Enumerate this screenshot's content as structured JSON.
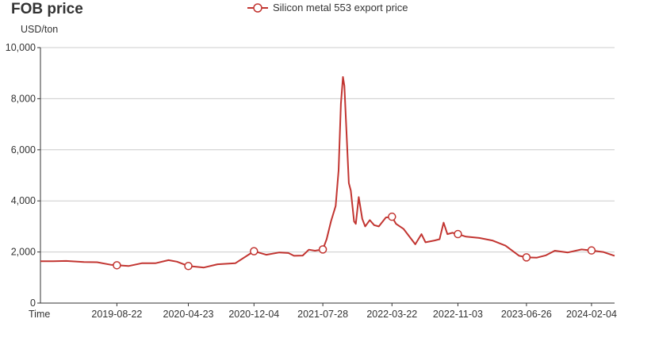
{
  "title": "FOB price",
  "unit": "USD/ton",
  "colors": {
    "series": "#c23531",
    "axis": "#333333",
    "grid": "#cccccc"
  },
  "chart_data": {
    "type": "line",
    "title": "FOB price",
    "ylabel": "USD/ton",
    "xlabel": "Time",
    "ylim": [
      0,
      10000
    ],
    "y_ticks": [
      0,
      2000,
      4000,
      6000,
      8000,
      10000
    ],
    "y_tick_labels": [
      "0",
      "2,000",
      "4,000",
      "6,000",
      "8,000",
      "10,000"
    ],
    "x_range": [
      "2018-12-03",
      "2024-04-23"
    ],
    "x_ticks": [
      "2019-08-22",
      "2020-04-23",
      "2020-12-04",
      "2021-07-28",
      "2022-03-22",
      "2022-11-03",
      "2023-06-26",
      "2024-02-04"
    ],
    "legend": "top-center",
    "grid": true,
    "series": [
      {
        "name": "Silicon metal 553 export price",
        "points": [
          [
            "2018-12-03",
            1640
          ],
          [
            "2019-01-15",
            1640
          ],
          [
            "2019-03-01",
            1650
          ],
          [
            "2019-05-01",
            1610
          ],
          [
            "2019-06-15",
            1600
          ],
          [
            "2019-08-01",
            1500
          ],
          [
            "2019-08-22",
            1480
          ],
          [
            "2019-10-01",
            1450
          ],
          [
            "2019-11-15",
            1560
          ],
          [
            "2020-01-01",
            1560
          ],
          [
            "2020-02-15",
            1680
          ],
          [
            "2020-03-15",
            1620
          ],
          [
            "2020-04-23",
            1450
          ],
          [
            "2020-06-15",
            1390
          ],
          [
            "2020-08-01",
            1520
          ],
          [
            "2020-10-01",
            1560
          ],
          [
            "2020-12-04",
            2030
          ],
          [
            "2021-01-15",
            1890
          ],
          [
            "2021-03-01",
            1980
          ],
          [
            "2021-04-01",
            1960
          ],
          [
            "2021-04-20",
            1850
          ],
          [
            "2021-05-20",
            1860
          ],
          [
            "2021-06-10",
            2090
          ],
          [
            "2021-07-01",
            2050
          ],
          [
            "2021-07-28",
            2100
          ],
          [
            "2021-08-10",
            2500
          ],
          [
            "2021-08-25",
            3200
          ],
          [
            "2021-09-10",
            3800
          ],
          [
            "2021-09-20",
            5200
          ],
          [
            "2021-09-28",
            7800
          ],
          [
            "2021-10-05",
            8850
          ],
          [
            "2021-10-10",
            8500
          ],
          [
            "2021-10-15",
            7200
          ],
          [
            "2021-10-25",
            4700
          ],
          [
            "2021-11-01",
            4400
          ],
          [
            "2021-11-12",
            3200
          ],
          [
            "2021-11-18",
            3100
          ],
          [
            "2021-11-28",
            4150
          ],
          [
            "2021-12-10",
            3300
          ],
          [
            "2021-12-20",
            3000
          ],
          [
            "2022-01-05",
            3250
          ],
          [
            "2022-01-20",
            3050
          ],
          [
            "2022-02-05",
            3000
          ],
          [
            "2022-03-01",
            3350
          ],
          [
            "2022-03-22",
            3380
          ],
          [
            "2022-04-05",
            3100
          ],
          [
            "2022-05-01",
            2900
          ],
          [
            "2022-06-10",
            2300
          ],
          [
            "2022-07-01",
            2700
          ],
          [
            "2022-07-15",
            2380
          ],
          [
            "2022-08-15",
            2450
          ],
          [
            "2022-09-01",
            2500
          ],
          [
            "2022-09-15",
            3150
          ],
          [
            "2022-09-28",
            2700
          ],
          [
            "2022-10-15",
            2750
          ],
          [
            "2022-11-03",
            2700
          ],
          [
            "2022-12-01",
            2600
          ],
          [
            "2023-01-15",
            2550
          ],
          [
            "2023-03-01",
            2450
          ],
          [
            "2023-04-15",
            2250
          ],
          [
            "2023-06-01",
            1850
          ],
          [
            "2023-06-26",
            1790
          ],
          [
            "2023-08-01",
            1780
          ],
          [
            "2023-09-01",
            1870
          ],
          [
            "2023-10-01",
            2050
          ],
          [
            "2023-11-15",
            1980
          ],
          [
            "2024-01-01",
            2100
          ],
          [
            "2024-02-04",
            2060
          ],
          [
            "2024-03-15",
            2000
          ],
          [
            "2024-04-23",
            1850
          ]
        ],
        "markers": [
          "2019-08-22",
          "2020-04-23",
          "2020-12-04",
          "2021-07-28",
          "2022-03-22",
          "2022-11-03",
          "2023-06-26",
          "2024-02-04"
        ]
      }
    ]
  }
}
